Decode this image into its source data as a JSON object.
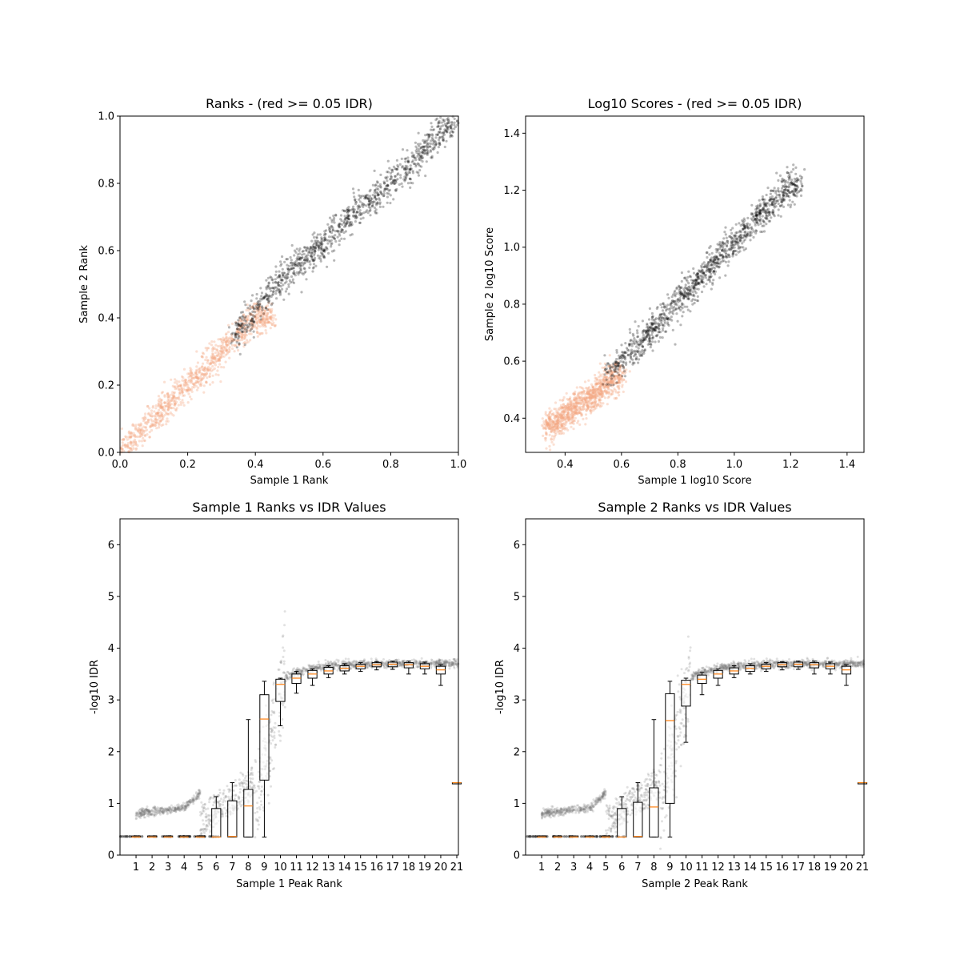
{
  "chart_data": [
    {
      "type": "scatter",
      "title": "Ranks - (red >= 0.05 IDR)",
      "xlabel": "Sample 1 Rank",
      "ylabel": "Sample 2 Rank",
      "xlim": [
        0,
        1
      ],
      "ylim": [
        0,
        1
      ],
      "xticks": [
        "0.0",
        "0.2",
        "0.4",
        "0.6",
        "0.8",
        "1.0"
      ],
      "yticks": [
        "0.0",
        "0.2",
        "0.4",
        "0.6",
        "0.8",
        "1.0"
      ],
      "grid": false,
      "series": [
        {
          "color": "#000000",
          "cluster": {
            "x_range": [
              0.33,
              1.0
            ],
            "trend": [
              [
                0.33,
                0.34
              ],
              [
                0.4,
                0.42
              ],
              [
                0.5,
                0.54
              ],
              [
                0.6,
                0.62
              ],
              [
                0.7,
                0.72
              ],
              [
                0.8,
                0.8
              ],
              [
                0.9,
                0.9
              ],
              [
                1.0,
                1.0
              ]
            ],
            "n": 1100
          }
        },
        {
          "color": "#f4a582",
          "cluster": {
            "x_range": [
              0.0,
              0.45
            ],
            "trend": [
              [
                0.0,
                0.0
              ],
              [
                0.1,
                0.1
              ],
              [
                0.2,
                0.2
              ],
              [
                0.3,
                0.3
              ],
              [
                0.4,
                0.4
              ]
            ],
            "n": 1000
          }
        }
      ]
    },
    {
      "type": "scatter",
      "title": "Log10 Scores - (red >= 0.05 IDR)",
      "xlabel": "Sample 1 log10 Score",
      "ylabel": "Sample 2 log10 Score",
      "xlim": [
        0.26,
        1.46
      ],
      "ylim": [
        0.28,
        1.46
      ],
      "xticks": [
        "0.4",
        "0.6",
        "0.8",
        "1.0",
        "1.2",
        "1.4"
      ],
      "yticks": [
        "0.4",
        "0.6",
        "0.8",
        "1.0",
        "1.2",
        "1.4"
      ],
      "grid": false,
      "series": [
        {
          "color": "#000000",
          "cluster": {
            "x_range": [
              0.55,
              1.24
            ],
            "trend": [
              [
                0.55,
                0.55
              ],
              [
                0.7,
                0.7
              ],
              [
                0.85,
                0.86
              ],
              [
                1.0,
                1.02
              ],
              [
                1.2,
                1.22
              ]
            ],
            "n": 1200
          }
        },
        {
          "color": "#f4a582",
          "cluster": {
            "x_range": [
              0.33,
              0.6
            ],
            "trend": [
              [
                0.33,
                0.36
              ],
              [
                0.4,
                0.41
              ],
              [
                0.5,
                0.48
              ],
              [
                0.6,
                0.56
              ]
            ],
            "n": 1000
          }
        }
      ]
    },
    {
      "type": "box",
      "title": "Sample 1 Ranks vs IDR Values",
      "xlabel": "Sample 1 Peak Rank",
      "ylabel": "-log10 IDR",
      "xlim": [
        0,
        21
      ],
      "ylim": [
        0,
        6.5
      ],
      "categories": [
        "1",
        "2",
        "3",
        "4",
        "5",
        "6",
        "7",
        "8",
        "9",
        "10",
        "11",
        "12",
        "13",
        "14",
        "15",
        "16",
        "17",
        "18",
        "19",
        "20",
        "21"
      ],
      "yticks": [
        "0",
        "1",
        "2",
        "3",
        "4",
        "5",
        "6"
      ],
      "boxes": [
        {
          "q1": 0.35,
          "med": 0.35,
          "q3": 0.37,
          "wlo": 0.35,
          "whi": 0.37
        },
        {
          "q1": 0.35,
          "med": 0.35,
          "q3": 0.37,
          "wlo": 0.35,
          "whi": 0.37
        },
        {
          "q1": 0.35,
          "med": 0.35,
          "q3": 0.37,
          "wlo": 0.35,
          "whi": 0.37
        },
        {
          "q1": 0.35,
          "med": 0.35,
          "q3": 0.37,
          "wlo": 0.35,
          "whi": 0.37
        },
        {
          "q1": 0.35,
          "med": 0.35,
          "q3": 0.37,
          "wlo": 0.35,
          "whi": 0.37
        },
        {
          "q1": 0.35,
          "med": 0.35,
          "q3": 0.9,
          "wlo": 0.35,
          "whi": 1.13
        },
        {
          "q1": 0.35,
          "med": 0.36,
          "q3": 1.05,
          "wlo": 0.35,
          "whi": 1.4
        },
        {
          "q1": 0.35,
          "med": 0.95,
          "q3": 1.27,
          "wlo": 0.35,
          "whi": 2.62
        },
        {
          "q1": 1.45,
          "med": 2.63,
          "q3": 3.1,
          "wlo": 0.35,
          "whi": 3.36
        },
        {
          "q1": 2.97,
          "med": 3.3,
          "q3": 3.4,
          "wlo": 2.5,
          "whi": 3.42
        },
        {
          "q1": 3.32,
          "med": 3.42,
          "q3": 3.5,
          "wlo": 3.13,
          "whi": 3.55
        },
        {
          "q1": 3.42,
          "med": 3.5,
          "q3": 3.57,
          "wlo": 3.28,
          "whi": 3.6
        },
        {
          "q1": 3.5,
          "med": 3.56,
          "q3": 3.63,
          "wlo": 3.43,
          "whi": 3.66
        },
        {
          "q1": 3.56,
          "med": 3.61,
          "q3": 3.66,
          "wlo": 3.5,
          "whi": 3.7
        },
        {
          "q1": 3.6,
          "med": 3.65,
          "q3": 3.69,
          "wlo": 3.55,
          "whi": 3.72
        },
        {
          "q1": 3.64,
          "med": 3.68,
          "q3": 3.72,
          "wlo": 3.58,
          "whi": 3.74
        },
        {
          "q1": 3.64,
          "med": 3.69,
          "q3": 3.73,
          "wlo": 3.59,
          "whi": 3.75
        },
        {
          "q1": 3.62,
          "med": 3.68,
          "q3": 3.72,
          "wlo": 3.5,
          "whi": 3.75
        },
        {
          "q1": 3.6,
          "med": 3.65,
          "q3": 3.7,
          "wlo": 3.5,
          "whi": 3.73
        },
        {
          "q1": 3.5,
          "med": 3.58,
          "q3": 3.65,
          "wlo": 3.28,
          "whi": 3.68
        },
        {
          "q1": 1.4,
          "med": 1.4,
          "q3": 1.4,
          "wlo": 1.4,
          "whi": 1.4
        }
      ]
    },
    {
      "type": "box",
      "title": "Sample 2 Ranks vs IDR Values",
      "xlabel": "Sample 2 Peak Rank",
      "ylabel": "-log10 IDR",
      "xlim": [
        0,
        21
      ],
      "ylim": [
        0,
        6.5
      ],
      "categories": [
        "1",
        "2",
        "3",
        "4",
        "5",
        "6",
        "7",
        "8",
        "9",
        "10",
        "11",
        "12",
        "13",
        "14",
        "15",
        "16",
        "17",
        "18",
        "19",
        "20",
        "21"
      ],
      "yticks": [
        "0",
        "1",
        "2",
        "3",
        "4",
        "5",
        "6"
      ],
      "boxes": [
        {
          "q1": 0.35,
          "med": 0.35,
          "q3": 0.37,
          "wlo": 0.35,
          "whi": 0.37
        },
        {
          "q1": 0.35,
          "med": 0.35,
          "q3": 0.37,
          "wlo": 0.35,
          "whi": 0.37
        },
        {
          "q1": 0.35,
          "med": 0.35,
          "q3": 0.37,
          "wlo": 0.35,
          "whi": 0.37
        },
        {
          "q1": 0.35,
          "med": 0.35,
          "q3": 0.37,
          "wlo": 0.35,
          "whi": 0.37
        },
        {
          "q1": 0.35,
          "med": 0.35,
          "q3": 0.37,
          "wlo": 0.35,
          "whi": 0.37
        },
        {
          "q1": 0.35,
          "med": 0.35,
          "q3": 0.9,
          "wlo": 0.35,
          "whi": 1.13
        },
        {
          "q1": 0.35,
          "med": 0.36,
          "q3": 1.02,
          "wlo": 0.35,
          "whi": 1.4
        },
        {
          "q1": 0.35,
          "med": 0.93,
          "q3": 1.3,
          "wlo": 0.35,
          "whi": 2.62
        },
        {
          "q1": 1.0,
          "med": 2.6,
          "q3": 3.12,
          "wlo": 0.35,
          "whi": 3.36
        },
        {
          "q1": 2.88,
          "med": 3.3,
          "q3": 3.38,
          "wlo": 2.18,
          "whi": 3.42
        },
        {
          "q1": 3.32,
          "med": 3.4,
          "q3": 3.48,
          "wlo": 3.1,
          "whi": 3.53
        },
        {
          "q1": 3.42,
          "med": 3.5,
          "q3": 3.57,
          "wlo": 3.28,
          "whi": 3.6
        },
        {
          "q1": 3.5,
          "med": 3.56,
          "q3": 3.62,
          "wlo": 3.43,
          "whi": 3.66
        },
        {
          "q1": 3.55,
          "med": 3.61,
          "q3": 3.66,
          "wlo": 3.5,
          "whi": 3.7
        },
        {
          "q1": 3.6,
          "med": 3.65,
          "q3": 3.69,
          "wlo": 3.55,
          "whi": 3.72
        },
        {
          "q1": 3.64,
          "med": 3.68,
          "q3": 3.72,
          "wlo": 3.58,
          "whi": 3.74
        },
        {
          "q1": 3.64,
          "med": 3.69,
          "q3": 3.73,
          "wlo": 3.59,
          "whi": 3.75
        },
        {
          "q1": 3.62,
          "med": 3.68,
          "q3": 3.72,
          "wlo": 3.5,
          "whi": 3.75
        },
        {
          "q1": 3.6,
          "med": 3.65,
          "q3": 3.7,
          "wlo": 3.5,
          "whi": 3.73
        },
        {
          "q1": 3.5,
          "med": 3.58,
          "q3": 3.65,
          "wlo": 3.28,
          "whi": 3.68
        },
        {
          "q1": 1.4,
          "med": 1.4,
          "q3": 1.4,
          "wlo": 1.4,
          "whi": 1.4
        }
      ]
    }
  ]
}
